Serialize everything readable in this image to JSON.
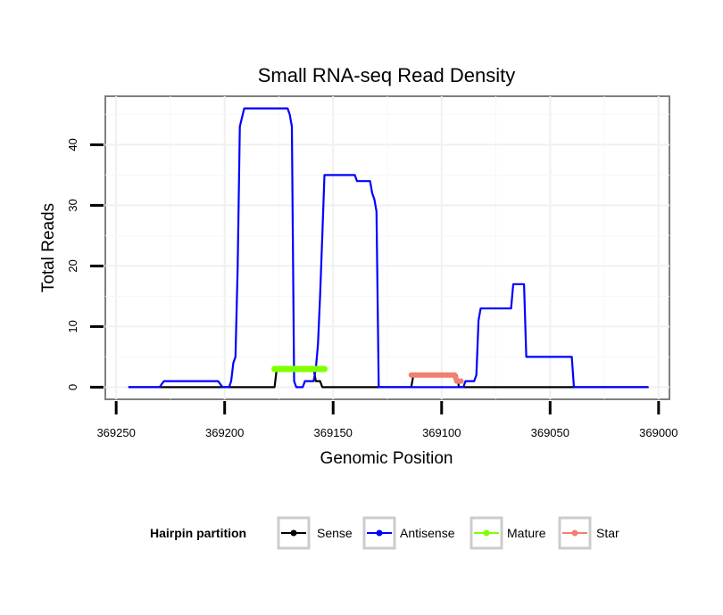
{
  "chart_data": {
    "type": "line",
    "title": "Small RNA-seq Read Density",
    "xlabel": "Genomic Position",
    "ylabel": "Total Reads",
    "xlim": [
      369255,
      368995
    ],
    "x_reversed": true,
    "ylim": [
      -2,
      48
    ],
    "x_ticks": [
      369250,
      369200,
      369150,
      369100,
      369050,
      369000
    ],
    "x_tick_labels": [
      "369250",
      "369200",
      "369150",
      "369100",
      "369050",
      "369000"
    ],
    "y_ticks": [
      0,
      10,
      20,
      30,
      40
    ],
    "y_tick_labels": [
      "0",
      "10",
      "20",
      "30",
      "40"
    ],
    "grid": true,
    "legend": {
      "title": "Hairpin partition",
      "position": "bottom",
      "entries": [
        "Sense",
        "Antisense",
        "Mature",
        "Star"
      ]
    },
    "series": [
      {
        "name": "Sense",
        "color": "#000000",
        "points": [
          [
            369244,
            0
          ],
          [
            369177,
            0
          ],
          [
            369176,
            3
          ],
          [
            369159,
            3
          ],
          [
            369158,
            1
          ],
          [
            369156,
            1
          ],
          [
            369155,
            0
          ],
          [
            369114,
            0
          ],
          [
            369113,
            2
          ],
          [
            369093,
            2
          ],
          [
            369092,
            0
          ],
          [
            369005,
            0
          ]
        ]
      },
      {
        "name": "Antisense",
        "color": "#0000ff",
        "points": [
          [
            369244,
            0
          ],
          [
            369230,
            0
          ],
          [
            369228,
            1
          ],
          [
            369203,
            1
          ],
          [
            369201,
            0
          ],
          [
            369198,
            0
          ],
          [
            369197,
            1
          ],
          [
            369196,
            4
          ],
          [
            369195,
            5
          ],
          [
            369194,
            20
          ],
          [
            369193,
            43
          ],
          [
            369191,
            46
          ],
          [
            369171,
            46
          ],
          [
            369170,
            45
          ],
          [
            369169,
            43
          ],
          [
            369168,
            1
          ],
          [
            369167,
            0
          ],
          [
            369164,
            0
          ],
          [
            369163,
            1
          ],
          [
            369159,
            1
          ],
          [
            369158,
            3
          ],
          [
            369157,
            7
          ],
          [
            369156,
            15
          ],
          [
            369155,
            25
          ],
          [
            369154,
            35
          ],
          [
            369140,
            35
          ],
          [
            369139,
            34
          ],
          [
            369133,
            34
          ],
          [
            369132,
            32
          ],
          [
            369131,
            31
          ],
          [
            369130,
            29
          ],
          [
            369129,
            0
          ],
          [
            369092,
            0
          ],
          [
            369090,
            0
          ],
          [
            369089,
            1
          ],
          [
            369085,
            1
          ],
          [
            369084,
            2
          ],
          [
            369083,
            11
          ],
          [
            369082,
            13
          ],
          [
            369068,
            13
          ],
          [
            369067,
            17
          ],
          [
            369062,
            17
          ],
          [
            369061,
            5
          ],
          [
            369040,
            5
          ],
          [
            369039,
            0
          ],
          [
            369005,
            0
          ]
        ]
      },
      {
        "name": "Mature",
        "color": "#80ff00",
        "points": [
          [
            369177,
            3
          ],
          [
            369154,
            3
          ]
        ]
      },
      {
        "name": "Star",
        "color": "#f08070",
        "points": [
          [
            369114,
            2
          ],
          [
            369094,
            2
          ],
          [
            369093,
            1
          ],
          [
            369091,
            1
          ]
        ]
      }
    ]
  }
}
